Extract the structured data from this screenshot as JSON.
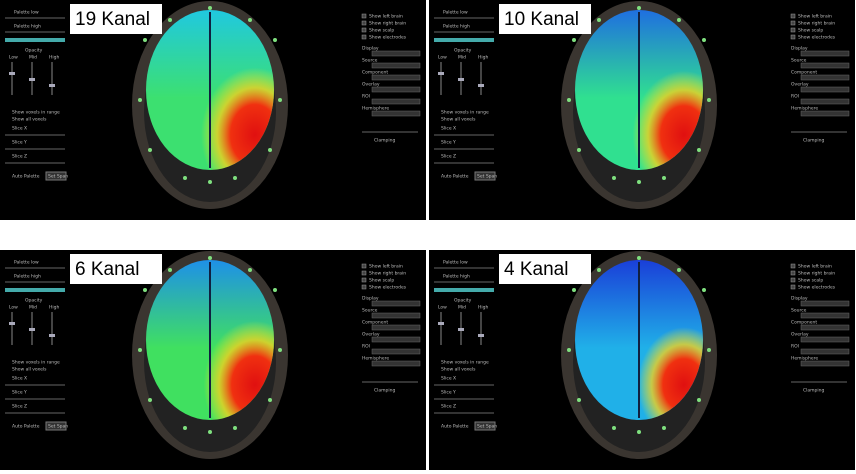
{
  "panels": [
    {
      "label": "19 Kanal"
    },
    {
      "label": "10 Kanal"
    },
    {
      "label": "6 Kanal"
    },
    {
      "label": "4 Kanal"
    }
  ],
  "sidebar": {
    "checkboxes": [
      "Show left brain",
      "Show right brain",
      "Show scalp",
      "Show electrodes"
    ],
    "sections": [
      "Display",
      "Source",
      "Component",
      "Overlay",
      "ROI",
      "Hemisphere"
    ],
    "clamping": "Clamping"
  },
  "controls": {
    "palette_low": "Palette low",
    "palette_high": "Palette high",
    "opacity": "Opacity",
    "levels": [
      "Low",
      "Mid",
      "High"
    ],
    "voxels": [
      "Show voxels in range",
      "Show all voxels"
    ],
    "slices": [
      "Slice X",
      "Slice Y",
      "Slice Z"
    ],
    "auto_palette": "Auto Palette",
    "set_span": "Set Span"
  }
}
